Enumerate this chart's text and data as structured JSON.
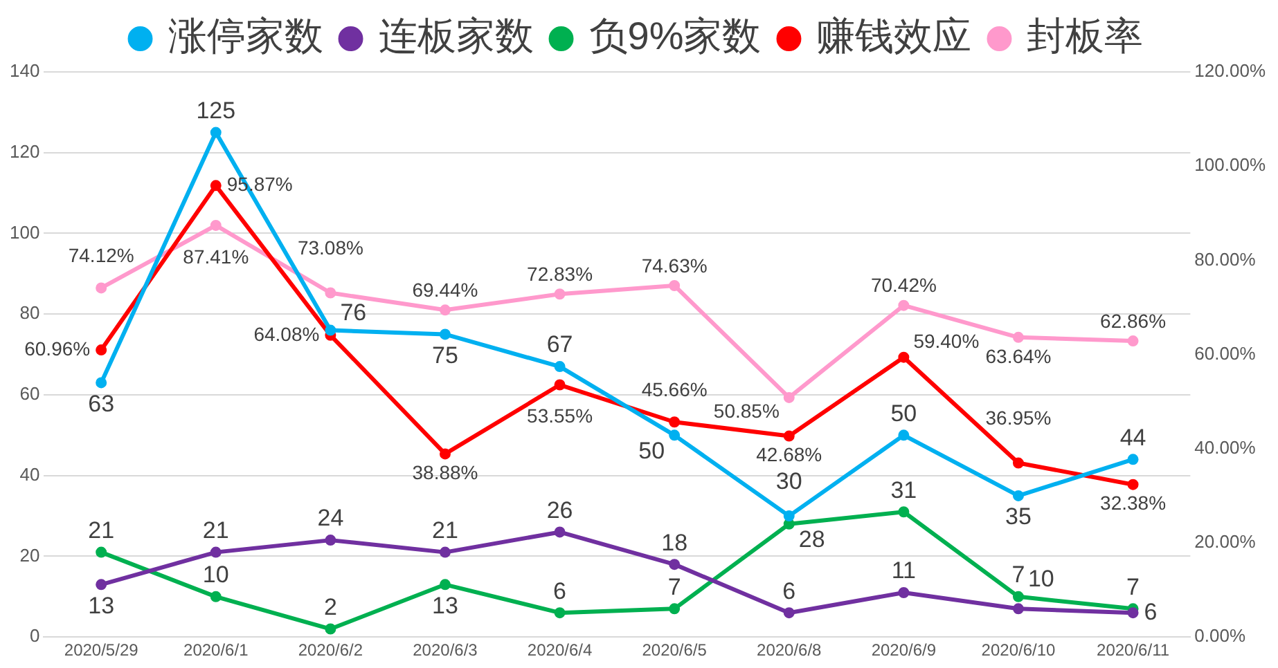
{
  "chart_data": {
    "type": "line",
    "categories": [
      "2020/5/29",
      "2020/6/1",
      "2020/6/2",
      "2020/6/3",
      "2020/6/4",
      "2020/6/5",
      "2020/6/8",
      "2020/6/9",
      "2020/6/10",
      "2020/6/11"
    ],
    "series": [
      {
        "name": "涨停家数",
        "color": "#00b0f0",
        "values": [
          63,
          125,
          76,
          75,
          67,
          50,
          30,
          50,
          35,
          44
        ]
      },
      {
        "name": "连板家数",
        "color": "#7030a0",
        "values": [
          13,
          21,
          24,
          21,
          26,
          18,
          6,
          11,
          7,
          6
        ]
      },
      {
        "name": "负9%家数",
        "color": "#00b050",
        "values": [
          21,
          10,
          2,
          13,
          6,
          7,
          28,
          31,
          10,
          7
        ]
      },
      {
        "name": "赚钱效应",
        "color": "#ff0000",
        "axis": "y2",
        "values": [
          60.96,
          95.87,
          64.08,
          38.88,
          53.55,
          45.66,
          42.68,
          59.4,
          36.95,
          32.38
        ],
        "value_labels": [
          "60.96%",
          "95.87%",
          "64.08%",
          "38.88%",
          "53.55%",
          "45.66%",
          "42.68%",
          "59.40%",
          "36.95%",
          "32.38%"
        ]
      },
      {
        "name": "封板率",
        "color": "#ff99cc",
        "axis": "y2",
        "values": [
          74.12,
          87.41,
          73.08,
          69.44,
          72.83,
          74.63,
          50.85,
          70.42,
          63.64,
          62.86
        ],
        "value_labels": [
          "74.12%",
          "87.41%",
          "73.08%",
          "69.44%",
          "72.83%",
          "74.63%",
          "50.85%",
          "70.42%",
          "63.64%",
          "62.86%"
        ]
      }
    ],
    "ylim": [
      0,
      140
    ],
    "yticks": [
      0,
      20,
      40,
      60,
      80,
      100,
      120,
      140
    ],
    "y2lim": [
      0,
      120
    ],
    "y2ticks": [
      {
        "value": 0,
        "label": "0.00%"
      },
      {
        "value": 20,
        "label": "20.00%"
      },
      {
        "value": 40,
        "label": "40.00%"
      },
      {
        "value": 60,
        "label": "60.00%"
      },
      {
        "value": 80,
        "label": "80.00%"
      },
      {
        "value": 100,
        "label": "100.00%"
      },
      {
        "value": 120,
        "label": "120.00%"
      }
    ],
    "grid": "y",
    "legend": "top",
    "marker": "circle",
    "line_style": "solid",
    "data_labels": true
  }
}
